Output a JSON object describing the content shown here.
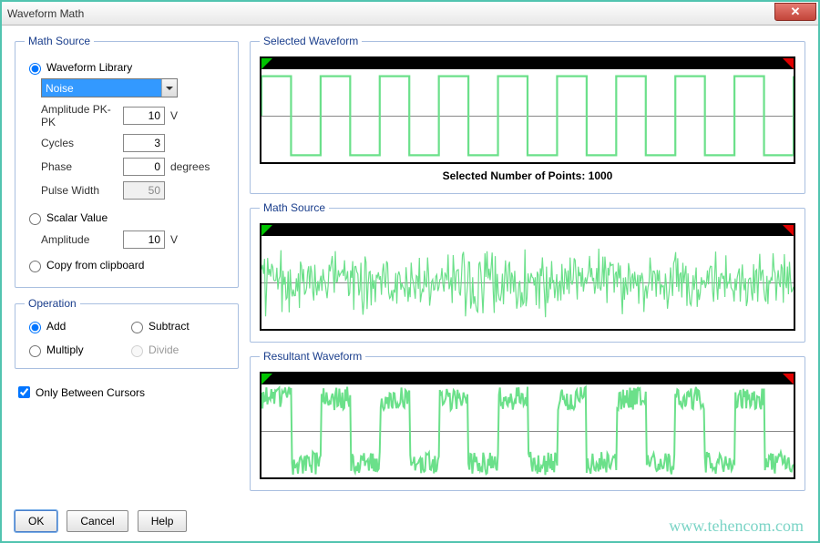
{
  "window": {
    "title": "Waveform Math"
  },
  "mathSource": {
    "legend": "Math Source",
    "waveformLibrary": {
      "label": "Waveform Library",
      "selected": "Noise",
      "checked": true
    },
    "amplitudePkPk": {
      "label": "Amplitude PK-PK",
      "value": "10",
      "unit": "V"
    },
    "cycles": {
      "label": "Cycles",
      "value": "3"
    },
    "phase": {
      "label": "Phase",
      "value": "0",
      "unit": "degrees"
    },
    "pulseWidth": {
      "label": "Pulse Width",
      "value": "50",
      "disabled": true
    },
    "scalarValue": {
      "label": "Scalar Value",
      "checked": false
    },
    "scalarAmplitude": {
      "label": "Amplitude",
      "value": "10",
      "unit": "V"
    },
    "copyFromClipboard": {
      "label": "Copy from clipboard",
      "checked": false
    }
  },
  "operation": {
    "legend": "Operation",
    "add": "Add",
    "subtract": "Subtract",
    "multiply": "Multiply",
    "divide": "Divide",
    "selected": "add",
    "divideDisabled": true
  },
  "onlyBetweenCursors": {
    "label": "Only Between Cursors",
    "checked": true
  },
  "buttons": {
    "ok": "OK",
    "cancel": "Cancel",
    "help": "Help"
  },
  "preview": {
    "selectedWaveform": {
      "legend": "Selected Waveform",
      "pointsLabel": "Selected Number of Points: 1000"
    },
    "mathSource": {
      "legend": "Math Source"
    },
    "resultant": {
      "legend": "Resultant Waveform"
    }
  },
  "colors": {
    "waveStroke": "#6be08a",
    "waveFillBg": "#ffffff",
    "markerLeft": "#00c400",
    "markerRight": "#e00000",
    "rulerBg": "#000000"
  },
  "waveforms": {
    "selected": {
      "type": "square",
      "cycles": 9,
      "amplitude": 0.85,
      "strokeWidth": 2.2
    },
    "noise": {
      "type": "noise",
      "points": 520,
      "amplitude": 0.8,
      "strokeWidth": 1.2,
      "seed": 424242
    },
    "resultant": {
      "type": "square_plus_noise",
      "cycles": 9,
      "amplitude": 0.7,
      "noiseAmp": 0.25,
      "pointsPerCycle": 60,
      "strokeWidth": 2.0,
      "seed": 9182
    }
  },
  "watermark": "www.tehencom.com"
}
